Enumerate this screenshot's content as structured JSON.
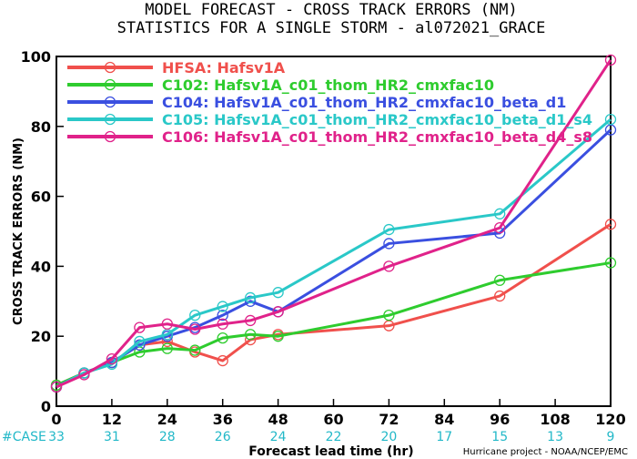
{
  "title": {
    "line1": "MODEL FORECAST - CROSS TRACK ERRORS (NM)",
    "line2": "STATISTICS FOR A SINGLE STORM - al072021_GRACE"
  },
  "credit": "Hurricane project - NOAA/NCEP/EMC",
  "case_label": "#CASE",
  "chart_data": {
    "type": "line",
    "title": "MODEL FORECAST - CROSS TRACK ERRORS (NM)",
    "subtitle": "STATISTICS FOR A SINGLE STORM - al072021_GRACE",
    "xlabel": "Forecast lead time (hr)",
    "ylabel": "CROSS TRACK ERRORS (NM)",
    "xlim": [
      0,
      120
    ],
    "ylim": [
      0,
      100
    ],
    "x_ticks": [
      0,
      12,
      24,
      36,
      48,
      60,
      72,
      84,
      96,
      108,
      120
    ],
    "y_ticks": [
      0,
      20,
      40,
      60,
      80,
      100
    ],
    "legend_position": "top-left",
    "grid": false,
    "cases": [
      33,
      31,
      28,
      26,
      24,
      22,
      20,
      17,
      15,
      13,
      9
    ],
    "series": [
      {
        "name": "HFSA: Hafsv1A",
        "color": "#f0504c",
        "x": [
          0,
          6,
          12,
          18,
          24,
          30,
          36,
          42,
          48,
          72,
          96,
          120
        ],
        "y": [
          6,
          9.5,
          12.5,
          17.5,
          18.5,
          15.5,
          13,
          19,
          20.5,
          23,
          31.5,
          52
        ]
      },
      {
        "name": "C102: Hafsv1A_c01_thom_HR2_cmxfac10",
        "color": "#2ecc2e",
        "x": [
          0,
          6,
          12,
          18,
          24,
          30,
          36,
          42,
          48,
          72,
          96,
          120
        ],
        "y": [
          6,
          9.5,
          12.5,
          15.5,
          16.5,
          16,
          19.5,
          20.5,
          20,
          26,
          36,
          41
        ]
      },
      {
        "name": "C104: Hafsv1A_c01_thom_HR2_cmxfac10_beta_d1",
        "color": "#3a4fe0",
        "x": [
          0,
          6,
          12,
          18,
          24,
          30,
          36,
          42,
          48,
          72,
          96,
          120
        ],
        "y": [
          5.5,
          9.5,
          12.5,
          17.5,
          20,
          22.5,
          26,
          30,
          27,
          46.5,
          49.5,
          79
        ]
      },
      {
        "name": "C105: Hafsv1A_c01_thom_HR2_cmxfac10_beta_d1_s4",
        "color": "#2ac8c8",
        "x": [
          0,
          6,
          12,
          18,
          24,
          30,
          36,
          42,
          48,
          72,
          96,
          120
        ],
        "y": [
          5.5,
          9.5,
          12,
          18.5,
          20.5,
          26,
          28.5,
          31,
          32.5,
          50.5,
          55,
          82
        ]
      },
      {
        "name": "C106: Hafsv1A_c01_thom_HR2_cmxfac10_beta_d4_s8",
        "color": "#e0228a",
        "x": [
          0,
          6,
          12,
          18,
          24,
          30,
          36,
          42,
          48,
          72,
          96,
          120
        ],
        "y": [
          5.5,
          9,
          13.5,
          22.5,
          23.5,
          22,
          23.5,
          24.5,
          27,
          40,
          51,
          99
        ]
      }
    ]
  }
}
